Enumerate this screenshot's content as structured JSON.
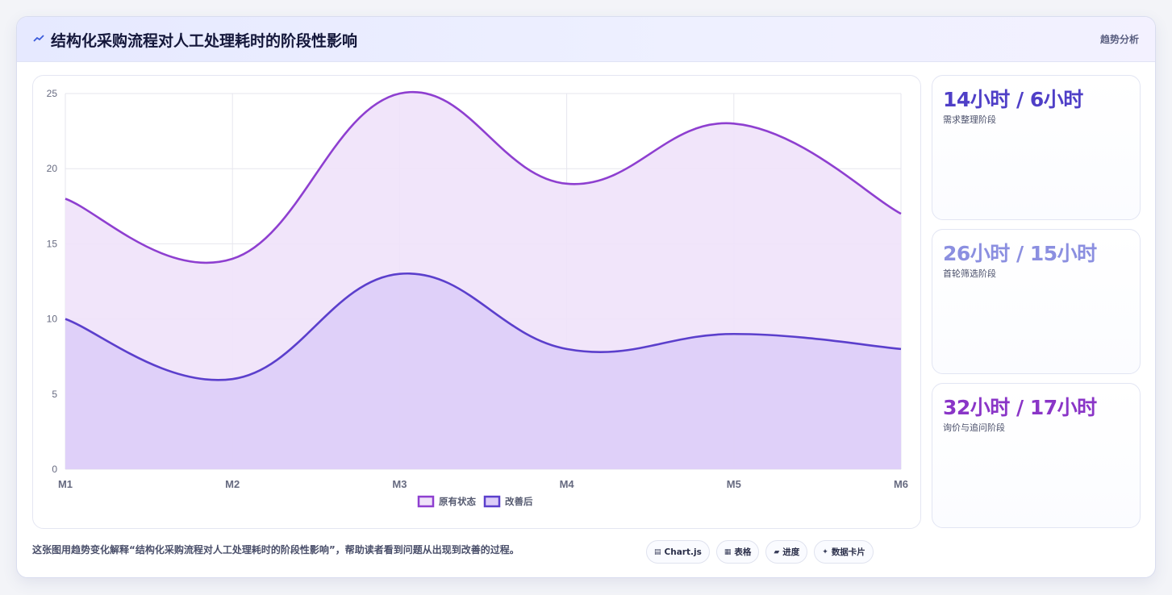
{
  "header": {
    "title": "结构化采购流程对人工处理耗时的阶段性影响",
    "icon": "trend-line-icon",
    "tag": "趋势分析"
  },
  "chart_data": {
    "type": "area",
    "title": "",
    "xlabel": "",
    "ylabel": "",
    "categories": [
      "M1",
      "M2",
      "M3",
      "M4",
      "M5",
      "M6"
    ],
    "ylim": [
      0,
      25
    ],
    "yticks": [
      0,
      5,
      10,
      15,
      20,
      25
    ],
    "grid": true,
    "legend_position": "bottom",
    "series": [
      {
        "name": "原有状态",
        "values": [
          18,
          14,
          25,
          19,
          23,
          17
        ],
        "color": "#8e3fd0",
        "fill": "#efe2f9"
      },
      {
        "name": "改善后",
        "values": [
          10,
          6,
          13,
          8,
          9,
          8
        ],
        "color": "#5b3fcc",
        "fill": "#dccdf8"
      }
    ]
  },
  "stats": [
    {
      "value": "14小时 / 6小时",
      "label": "需求整理阶段",
      "color": "#4f3fc7"
    },
    {
      "value": "26小时 / 15小时",
      "label": "首轮筛选阶段",
      "color": "#8b8fe0"
    },
    {
      "value": "32小时 / 17小时",
      "label": "询价与追问阶段",
      "color": "#8a35c7"
    }
  ],
  "footer": {
    "description": "这张图用趋势变化解释“结构化采购流程对人工处理耗时的阶段性影响”，帮助读者看到问题从出现到改善的过程。"
  },
  "chips": [
    {
      "icon": "▤",
      "label": "Chart.js"
    },
    {
      "icon": "▦",
      "label": "表格"
    },
    {
      "icon": "▰",
      "label": "进度"
    },
    {
      "icon": "✦",
      "label": "数据卡片"
    }
  ]
}
